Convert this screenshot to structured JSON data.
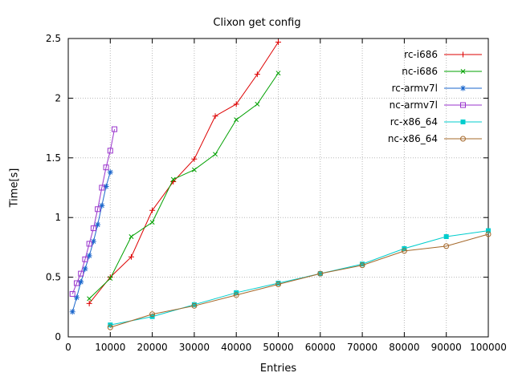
{
  "chart_data": {
    "type": "line",
    "title": "Clixon get config",
    "xlabel": "Entries",
    "ylabel": "Time[s]",
    "xlim": [
      0,
      100000
    ],
    "ylim": [
      0,
      2.5
    ],
    "x_ticks": [
      0,
      10000,
      20000,
      30000,
      40000,
      50000,
      60000,
      70000,
      80000,
      90000,
      100000
    ],
    "y_ticks": [
      0,
      0.5,
      1,
      1.5,
      2,
      2.5
    ],
    "grid": true,
    "grid_color": "#b8b8b8",
    "axis_color": "#000000",
    "legend_position": "inside-top-right",
    "series": [
      {
        "name": "rc-i686",
        "color": "#dd0000",
        "marker": "plus",
        "x": [
          5000,
          10000,
          15000,
          20000,
          25000,
          30000,
          35000,
          40000,
          45000,
          50000
        ],
        "y": [
          0.28,
          0.5,
          0.67,
          1.06,
          1.3,
          1.49,
          1.85,
          1.95,
          2.2,
          2.47
        ]
      },
      {
        "name": "nc-i686",
        "color": "#00a000",
        "marker": "x",
        "x": [
          5000,
          10000,
          15000,
          20000,
          25000,
          30000,
          35000,
          40000,
          45000,
          50000
        ],
        "y": [
          0.32,
          0.49,
          0.84,
          0.96,
          1.32,
          1.4,
          1.53,
          1.82,
          1.95,
          2.21
        ]
      },
      {
        "name": "rc-armv7l",
        "color": "#1a66cc",
        "marker": "asterisk",
        "x": [
          1000,
          2000,
          3000,
          4000,
          5000,
          6000,
          7000,
          8000,
          9000,
          10000
        ],
        "y": [
          0.21,
          0.33,
          0.46,
          0.57,
          0.68,
          0.8,
          0.94,
          1.1,
          1.26,
          1.38
        ]
      },
      {
        "name": "nc-armv7l",
        "color": "#9933cc",
        "marker": "square-open",
        "x": [
          1000,
          2000,
          3000,
          4000,
          5000,
          6000,
          7000,
          8000,
          9000,
          10000,
          11000
        ],
        "y": [
          0.36,
          0.45,
          0.53,
          0.65,
          0.78,
          0.91,
          1.07,
          1.25,
          1.42,
          1.56,
          1.74
        ]
      },
      {
        "name": "rc-x86_64",
        "color": "#00cdcd",
        "marker": "square-filled",
        "x": [
          10000,
          20000,
          30000,
          40000,
          50000,
          60000,
          70000,
          80000,
          90000,
          100000
        ],
        "y": [
          0.1,
          0.17,
          0.27,
          0.37,
          0.45,
          0.53,
          0.61,
          0.74,
          0.84,
          0.89
        ]
      },
      {
        "name": "nc-x86_64",
        "color": "#a5682a",
        "marker": "circle-open",
        "x": [
          10000,
          20000,
          30000,
          40000,
          50000,
          60000,
          70000,
          80000,
          90000,
          100000
        ],
        "y": [
          0.08,
          0.19,
          0.26,
          0.35,
          0.44,
          0.53,
          0.6,
          0.72,
          0.76,
          0.86
        ]
      }
    ]
  }
}
